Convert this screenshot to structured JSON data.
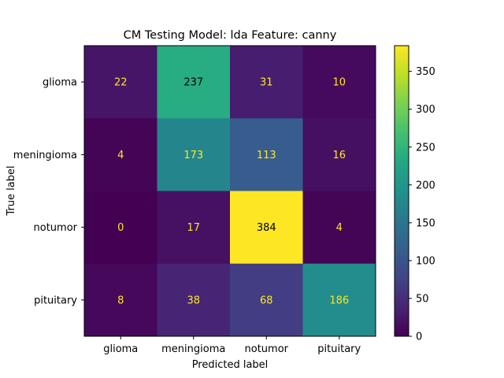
{
  "chart_data": {
    "type": "heatmap",
    "title": "CM Testing Model: lda Feature: canny",
    "xlabel": "Predicted label",
    "ylabel": "True label",
    "x_categories": [
      "glioma",
      "meningioma",
      "notumor",
      "pituitary"
    ],
    "y_categories": [
      "glioma",
      "meningioma",
      "notumor",
      "pituitary"
    ],
    "values": [
      [
        22,
        237,
        31,
        10
      ],
      [
        4,
        173,
        113,
        16
      ],
      [
        0,
        17,
        384,
        4
      ],
      [
        8,
        38,
        68,
        186
      ]
    ],
    "colormap": "viridis",
    "colorbar": {
      "min": 0,
      "max": 384,
      "ticks": [
        0,
        50,
        100,
        150,
        200,
        250,
        300,
        350
      ]
    },
    "text_colors": {
      "dark_cell": "#fde725",
      "light_cell": "#000000"
    }
  }
}
